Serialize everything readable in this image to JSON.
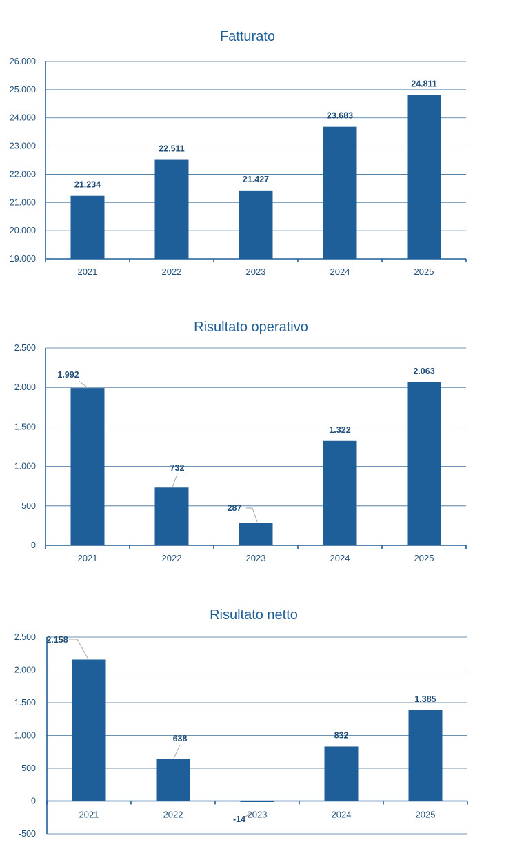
{
  "chart_data": [
    {
      "type": "bar",
      "title": "Fatturato",
      "categories": [
        "2021",
        "2022",
        "2023",
        "2024",
        "2025"
      ],
      "values": [
        21234,
        22511,
        21427,
        23683,
        24811
      ],
      "value_labels": [
        "21.234",
        "22.511",
        "21.427",
        "23.683",
        "24.811"
      ],
      "ylim": [
        19000,
        26000
      ],
      "yticks": [
        19000,
        20000,
        21000,
        22000,
        23000,
        24000,
        25000,
        26000
      ],
      "ytick_labels": [
        "19.000",
        "20.000",
        "21.000",
        "22.000",
        "23.000",
        "24.000",
        "25.000",
        "26.000"
      ],
      "grid": true,
      "xlabel": "",
      "ylabel": ""
    },
    {
      "type": "bar",
      "title": "Risultato operativo",
      "categories": [
        "2021",
        "2022",
        "2023",
        "2024",
        "2025"
      ],
      "values": [
        1992,
        732,
        287,
        1322,
        2063
      ],
      "value_labels": [
        "1.992",
        "732",
        "287",
        "1.322",
        "2.063"
      ],
      "ylim": [
        0,
        2500
      ],
      "yticks": [
        0,
        500,
        1000,
        1500,
        2000,
        2500
      ],
      "ytick_labels": [
        "0",
        "500",
        "1.000",
        "1.500",
        "2.000",
        "2.500"
      ],
      "grid": true,
      "xlabel": "",
      "ylabel": ""
    },
    {
      "type": "bar",
      "title": "Risultato netto",
      "categories": [
        "2021",
        "2022",
        "2023",
        "2024",
        "2025"
      ],
      "values": [
        2158,
        638,
        -14,
        832,
        1385
      ],
      "value_labels": [
        "2.158",
        "638",
        "-14",
        "832",
        "1.385"
      ],
      "ylim": [
        -500,
        2500
      ],
      "yticks": [
        -500,
        0,
        500,
        1000,
        1500,
        2000,
        2500
      ],
      "ytick_labels": [
        "-500",
        "0",
        "500",
        "1.000",
        "1.500",
        "2.000",
        "2.500"
      ],
      "grid": true,
      "xlabel": "",
      "ylabel": ""
    }
  ]
}
